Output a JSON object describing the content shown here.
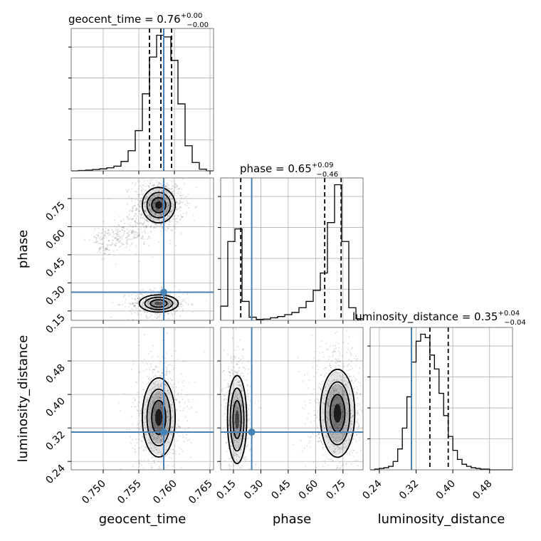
{
  "chart_data": {
    "type": "corner",
    "parameters": [
      "geocent_time",
      "phase",
      "luminosity_distance"
    ],
    "truth": {
      "geocent_time": 0.7585,
      "phase": 0.25,
      "luminosity_distance": 0.31
    },
    "panels": {
      "geocent_time": {
        "title_main": "geocent_time = 0.76",
        "title_sup": "+0.00",
        "title_sub": "−0.00",
        "xlim": [
          0.7455,
          0.7655
        ],
        "ticks": [
          0.75,
          0.755,
          0.76,
          0.765
        ],
        "tick_labels": [
          "0.750",
          "0.755",
          "0.760",
          "0.765"
        ],
        "quantiles": [
          0.7565,
          0.7581,
          0.7596
        ],
        "bin_edges": [
          0.7455,
          0.7465,
          0.7475,
          0.7485,
          0.7495,
          0.7505,
          0.7515,
          0.7525,
          0.7535,
          0.7545,
          0.7555,
          0.7565,
          0.7575,
          0.7585,
          0.7595,
          0.7605,
          0.7615,
          0.7625,
          0.7635,
          0.7645,
          0.7655
        ],
        "counts": [
          0,
          1,
          2,
          4,
          6,
          9,
          14,
          28,
          60,
          120,
          230,
          340,
          405,
          400,
          330,
          200,
          75,
          25,
          5,
          0
        ]
      },
      "phase": {
        "title_main": "phase = 0.65",
        "title_sup": "+0.09",
        "title_sub": "−0.46",
        "xlim": [
          0.08,
          0.86
        ],
        "ylim": [
          0.1,
          0.86
        ],
        "ticks": [
          0.15,
          0.3,
          0.45,
          0.6,
          0.75
        ],
        "tick_labels": [
          "0.15",
          "0.30",
          "0.45",
          "0.60",
          "0.75"
        ],
        "quantiles": [
          0.19,
          0.65,
          0.74
        ],
        "bin_edges": [
          0.08,
          0.119,
          0.158,
          0.197,
          0.236,
          0.275,
          0.314,
          0.353,
          0.392,
          0.431,
          0.47,
          0.509,
          0.548,
          0.587,
          0.626,
          0.665,
          0.704,
          0.743,
          0.782,
          0.821,
          0.86
        ],
        "counts": [
          45,
          250,
          290,
          60,
          10,
          3,
          4,
          8,
          12,
          18,
          25,
          40,
          60,
          95,
          150,
          310,
          430,
          250,
          40,
          5
        ]
      },
      "luminosity_distance": {
        "title_main": "luminosity_distance = 0.35",
        "title_sup": "+0.04",
        "title_sub": "−0.04",
        "xlim": [
          0.22,
          0.53
        ],
        "ylim": [
          0.22,
          0.56
        ],
        "ticks": [
          0.24,
          0.32,
          0.4,
          0.48
        ],
        "tick_labels": [
          "0.24",
          "0.32",
          "0.40",
          "0.48"
        ],
        "quantiles": [
          0.31,
          0.35,
          0.39
        ],
        "bin_edges": [
          0.22,
          0.23,
          0.24,
          0.25,
          0.26,
          0.27,
          0.28,
          0.29,
          0.3,
          0.31,
          0.32,
          0.33,
          0.34,
          0.35,
          0.36,
          0.37,
          0.38,
          0.39,
          0.4,
          0.41,
          0.42,
          0.43,
          0.44,
          0.45,
          0.46,
          0.47,
          0.48,
          0.49,
          0.5,
          0.51,
          0.52,
          0.53
        ],
        "counts": [
          0,
          1,
          2,
          3,
          5,
          12,
          30,
          60,
          105,
          155,
          185,
          195,
          190,
          165,
          145,
          110,
          78,
          48,
          28,
          15,
          8,
          5,
          3,
          2,
          1,
          1,
          0,
          0,
          0,
          0,
          0
        ]
      }
    },
    "blobs": [
      {
        "panel": "phase_vs_geocent_time",
        "cx": 0.7578,
        "cy": 0.715,
        "sx": 0.0011,
        "sy": 0.045,
        "weight": 1.0,
        "note_x_param": "geocent_time",
        "note_y_param": "phase"
      },
      {
        "panel": "phase_vs_geocent_time",
        "cx": 0.7578,
        "cy": 0.19,
        "sx": 0.0013,
        "sy": 0.022,
        "weight": 0.6,
        "note_x_param": "geocent_time",
        "note_y_param": "phase"
      },
      {
        "panel": "ld_vs_geocent_time",
        "cx": 0.7578,
        "cy": 0.345,
        "sx": 0.0011,
        "sy": 0.045,
        "weight": 1.0,
        "note_x_param": "geocent_time",
        "note_y_param": "luminosity_distance"
      },
      {
        "panel": "ld_vs_phase",
        "cx": 0.72,
        "cy": 0.355,
        "sx": 0.045,
        "sy": 0.05,
        "weight": 1.0,
        "note_x_param": "phase",
        "note_y_param": "luminosity_distance"
      },
      {
        "panel": "ld_vs_phase",
        "cx": 0.17,
        "cy": 0.34,
        "sx": 0.025,
        "sy": 0.05,
        "weight": 0.7,
        "note_x_param": "phase",
        "note_y_param": "luminosity_distance"
      }
    ],
    "axis_labels": {
      "geocent_time": "geocent_time",
      "phase": "phase",
      "luminosity_distance": "luminosity_distance"
    },
    "colors": {
      "truth": "#4682b4",
      "histogram": "#000000",
      "grid": "#b0b0b0"
    }
  }
}
